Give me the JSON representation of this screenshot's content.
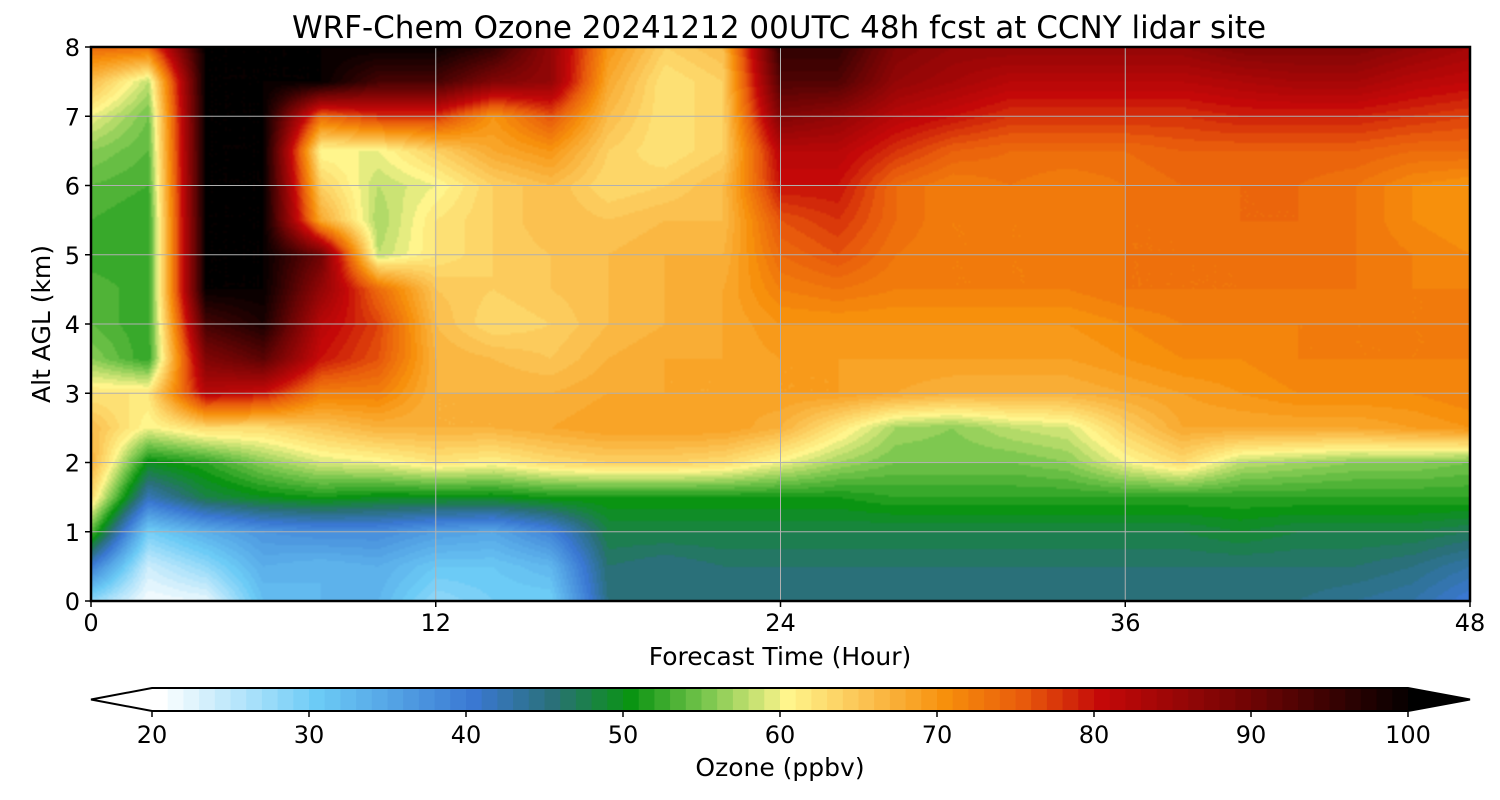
{
  "chart_data": {
    "type": "heatmap",
    "title": "WRF-Chem Ozone  20241212 00UTC 48h fcst at CCNY lidar site",
    "xlabel": "Forecast Time (Hour)",
    "ylabel": "Alt AGL (km)",
    "xlim": [
      0,
      48
    ],
    "ylim": [
      0,
      8
    ],
    "x_ticks": [
      0,
      12,
      24,
      36,
      48
    ],
    "y_ticks": [
      0,
      1,
      2,
      3,
      4,
      5,
      6,
      7,
      8
    ],
    "grid": true,
    "x": [
      0,
      2,
      4,
      6,
      8,
      10,
      12,
      14,
      16,
      18,
      20,
      22,
      24,
      26,
      28,
      30,
      32,
      34,
      36,
      38,
      40,
      42,
      44,
      46,
      48
    ],
    "y": [
      0,
      0.5,
      1,
      1.5,
      2,
      2.5,
      3,
      3.5,
      4,
      4.5,
      5,
      5.5,
      6,
      6.5,
      7,
      7.5,
      8
    ],
    "z": [
      [
        28,
        21,
        22,
        32,
        33,
        33,
        28,
        30,
        30,
        45,
        45,
        45,
        45,
        45,
        45,
        45,
        45,
        45,
        45,
        45,
        45,
        45,
        44,
        43,
        40
      ],
      [
        40,
        24,
        28,
        34,
        33,
        34,
        31,
        31,
        33,
        46,
        45,
        46,
        46,
        46,
        46,
        46,
        46,
        46,
        46,
        46,
        46,
        46,
        46,
        45,
        43
      ],
      [
        54,
        30,
        34,
        37,
        38,
        38,
        36,
        35,
        39,
        48,
        48,
        48,
        48,
        48,
        48,
        48,
        48,
        48,
        48,
        48,
        49,
        48,
        48,
        48,
        47
      ],
      [
        63,
        42,
        48,
        50,
        51,
        50,
        50,
        50,
        51,
        51,
        51,
        51,
        51,
        51,
        52,
        52,
        52,
        52,
        52,
        52,
        52,
        52,
        52,
        52,
        52
      ],
      [
        67,
        50,
        52,
        56,
        59,
        60,
        62,
        61,
        63,
        64,
        64,
        63,
        60,
        57,
        55,
        55,
        55,
        56,
        60,
        63,
        58,
        57,
        56,
        56,
        55
      ],
      [
        66,
        60,
        63,
        63,
        65,
        67,
        67,
        67,
        68,
        69,
        69,
        69,
        67,
        62,
        57,
        56,
        58,
        59,
        64,
        68,
        68,
        68,
        68,
        69,
        70
      ],
      [
        62,
        62,
        82,
        80,
        72,
        72,
        67,
        67,
        67,
        68,
        68,
        68,
        69,
        69,
        68,
        67,
        67,
        67,
        68,
        69,
        70,
        71,
        71,
        71,
        72
      ],
      [
        56,
        52,
        88,
        92,
        80,
        76,
        67,
        66,
        65,
        67,
        68,
        68,
        69,
        69,
        69,
        69,
        69,
        69,
        70,
        71,
        71,
        72,
        72,
        72,
        72
      ],
      [
        54,
        52,
        94,
        98,
        82,
        77,
        66,
        63,
        64,
        66,
        67,
        68,
        70,
        70,
        70,
        70,
        70,
        70,
        71,
        72,
        72,
        72,
        72,
        72,
        72
      ],
      [
        54,
        52,
        100,
        100,
        86,
        74,
        65,
        64,
        65,
        66,
        67,
        68,
        72,
        73,
        72,
        72,
        72,
        72,
        73,
        73,
        73,
        73,
        73,
        72,
        72
      ],
      [
        52,
        52,
        100,
        100,
        90,
        58,
        62,
        64,
        65,
        66,
        67,
        67,
        74,
        76,
        73,
        72,
        72,
        72,
        73,
        73,
        73,
        74,
        73,
        72,
        71
      ],
      [
        53,
        52,
        100,
        100,
        68,
        57,
        62,
        64,
        66,
        65,
        66,
        66,
        76,
        78,
        74,
        72,
        72,
        72,
        73,
        73,
        74,
        74,
        73,
        71,
        70
      ],
      [
        54,
        53,
        100,
        100,
        64,
        58,
        60,
        64,
        66,
        63,
        64,
        66,
        80,
        80,
        74,
        72,
        73,
        72,
        73,
        74,
        74,
        74,
        73,
        71,
        70
      ],
      [
        56,
        54,
        100,
        100,
        60,
        60,
        64,
        68,
        70,
        64,
        62,
        64,
        82,
        82,
        78,
        75,
        74,
        74,
        74,
        75,
        75,
        75,
        75,
        74,
        74
      ],
      [
        60,
        55,
        100,
        100,
        74,
        78,
        78,
        70,
        76,
        66,
        62,
        64,
        88,
        86,
        82,
        80,
        78,
        78,
        78,
        78,
        79,
        79,
        79,
        78,
        77
      ],
      [
        66,
        58,
        100,
        100,
        100,
        94,
        94,
        88,
        86,
        68,
        62,
        64,
        93,
        93,
        86,
        84,
        82,
        82,
        82,
        82,
        83,
        84,
        84,
        82,
        81
      ],
      [
        74,
        74,
        100,
        100,
        100,
        100,
        100,
        96,
        86,
        70,
        64,
        66,
        96,
        96,
        88,
        86,
        86,
        86,
        86,
        86,
        88,
        88,
        88,
        86,
        84
      ]
    ],
    "colorbar": {
      "label": "Ozone  (ppbv)",
      "min": 20,
      "max": 100,
      "ticks": [
        20,
        30,
        40,
        50,
        60,
        70,
        80,
        90,
        100
      ],
      "extend": "both",
      "colors": [
        {
          "v": 20,
          "c": "#ffffff"
        },
        {
          "v": 30,
          "c": "#6ccbf6"
        },
        {
          "v": 40,
          "c": "#3a78d2"
        },
        {
          "v": 45,
          "c": "#2a7079"
        },
        {
          "v": 50,
          "c": "#0a9412"
        },
        {
          "v": 55,
          "c": "#7ec850"
        },
        {
          "v": 60,
          "c": "#fff58c"
        },
        {
          "v": 65,
          "c": "#fbc150"
        },
        {
          "v": 70,
          "c": "#f7900c"
        },
        {
          "v": 75,
          "c": "#e85a0c"
        },
        {
          "v": 80,
          "c": "#c40808"
        },
        {
          "v": 90,
          "c": "#6a0404"
        },
        {
          "v": 100,
          "c": "#000000"
        }
      ]
    }
  }
}
